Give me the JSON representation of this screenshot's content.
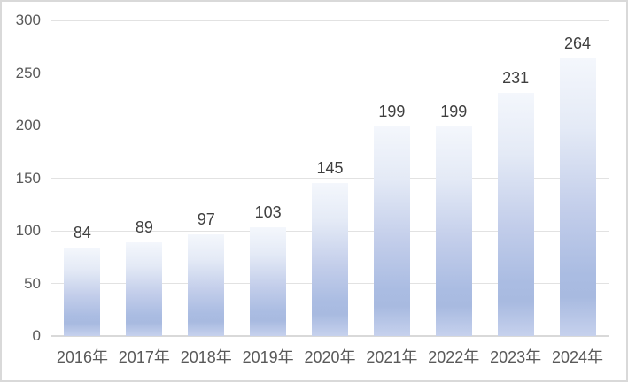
{
  "chart_data": {
    "type": "bar",
    "title": "",
    "xlabel": "",
    "ylabel": "",
    "categories": [
      "2016年",
      "2017年",
      "2018年",
      "2019年",
      "2020年",
      "2021年",
      "2022年",
      "2023年",
      "2024年"
    ],
    "values": [
      84,
      89,
      97,
      103,
      145,
      199,
      199,
      231,
      264
    ],
    "data_labels_shown": true,
    "ylim": [
      0,
      300
    ],
    "yticks": [
      0,
      50,
      100,
      150,
      200,
      250,
      300
    ],
    "grid": true,
    "legend": "none",
    "styles": {
      "background": "#ffffff",
      "border": "#d9d9d9",
      "gridline": "#e2e2e2",
      "axis_line": "#d9d9d9",
      "tick_label_color": "#595959",
      "data_label_color": "#3f3f3f",
      "bar_gradient": [
        "#f4f7fc",
        "#e4eaf6",
        "#c2cdea",
        "#aabce2",
        "#a8bae0",
        "#c6d1ed"
      ]
    }
  }
}
